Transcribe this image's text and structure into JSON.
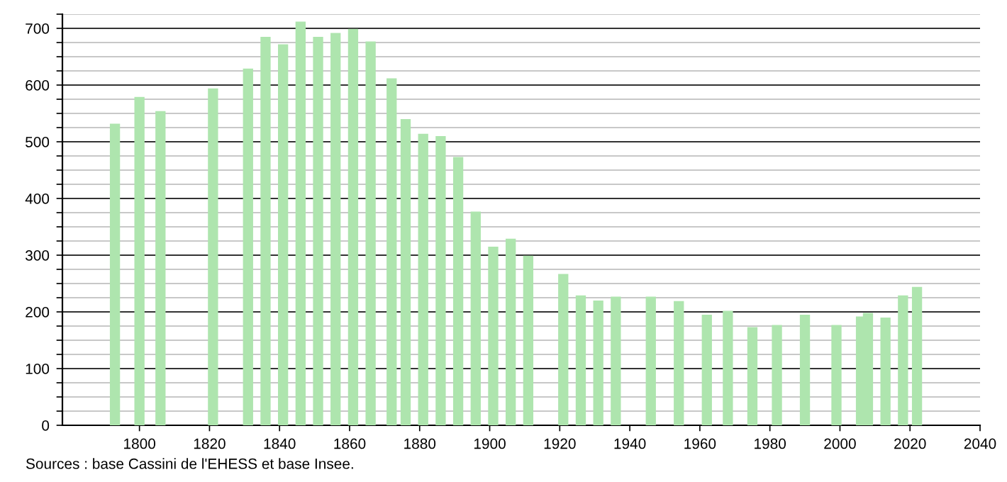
{
  "chart_data": {
    "type": "bar",
    "x": [
      1793,
      1800,
      1806,
      1821,
      1831,
      1836,
      1841,
      1846,
      1851,
      1856,
      1861,
      1866,
      1872,
      1876,
      1881,
      1886,
      1891,
      1896,
      1901,
      1906,
      1911,
      1921,
      1926,
      1931,
      1936,
      1946,
      1954,
      1962,
      1968,
      1975,
      1982,
      1990,
      1999,
      2006,
      2008,
      2013,
      2018,
      2022
    ],
    "values": [
      532,
      579,
      554,
      594,
      629,
      685,
      672,
      712,
      685,
      692,
      699,
      677,
      612,
      540,
      514,
      510,
      473,
      377,
      315,
      329,
      299,
      267,
      229,
      220,
      227,
      227,
      219,
      195,
      202,
      173,
      177,
      195,
      177,
      192,
      198,
      190,
      229,
      244
    ],
    "color": "#aee5ae",
    "xlim": [
      1778,
      2040
    ],
    "xticks": [
      1800,
      1820,
      1840,
      1860,
      1880,
      1900,
      1920,
      1940,
      1960,
      1980,
      2000,
      2020,
      2040
    ],
    "ylim": [
      0,
      725
    ],
    "yticks": [
      0,
      {
        "value": 25,
        "label": null
      },
      {
        "value": 50,
        "label": null
      },
      {
        "value": 75,
        "label": null
      },
      100,
      {
        "value": 125,
        "label": null
      },
      {
        "value": 150,
        "label": null
      },
      {
        "value": 175,
        "label": null
      },
      200,
      {
        "value": 225,
        "label": null
      },
      {
        "value": 250,
        "label": null
      },
      {
        "value": 275,
        "label": null
      },
      300,
      {
        "value": 325,
        "label": null
      },
      {
        "value": 350,
        "label": null
      },
      {
        "value": 375,
        "label": null
      },
      400,
      {
        "value": 425,
        "label": null
      },
      {
        "value": 450,
        "label": null
      },
      {
        "value": 475,
        "label": null
      },
      500,
      {
        "value": 525,
        "label": null
      },
      {
        "value": 550,
        "label": null
      },
      {
        "value": 575,
        "label": null
      },
      600,
      {
        "value": 625,
        "label": null
      },
      {
        "value": 650,
        "label": null
      },
      {
        "value": 675,
        "label": null
      },
      700,
      {
        "value": 725,
        "label": null
      }
    ],
    "grid": "y",
    "annotations": [
      "Sources : base Cassini de l'EHESS et base Insee."
    ]
  }
}
